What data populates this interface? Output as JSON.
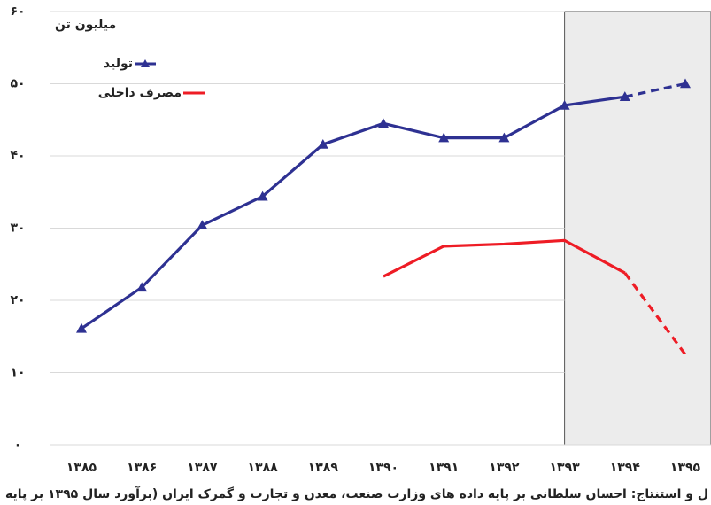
{
  "chart_data": {
    "type": "line",
    "y_label": "میلیون تن",
    "categories": [
      "۱۳۸۵",
      "۱۳۸۶",
      "۱۳۸۷",
      "۱۳۸۸",
      "۱۳۸۹",
      "۱۳۹۰",
      "۱۳۹۱",
      "۱۳۹۲",
      "۱۳۹۳",
      "۱۳۹۴",
      "۱۳۹۵"
    ],
    "series": [
      {
        "name": "تولید",
        "color": "#2e3192",
        "marker": "triangle",
        "values": [
          16.1,
          21.8,
          30.4,
          34.4,
          41.6,
          44.5,
          42.5,
          42.5,
          47,
          48.2,
          50
        ]
      },
      {
        "name": "مصرف داخلی",
        "color": "#ee1c25",
        "marker": "none",
        "values": [
          null,
          null,
          null,
          null,
          null,
          23.3,
          27.5,
          27.8,
          28.3,
          23.8,
          12.5
        ]
      }
    ],
    "dashed_from_index": 9,
    "shaded_from_index": 8,
    "ylim": [
      0,
      60
    ],
    "yticks": [
      {
        "value": 0,
        "label": "۰"
      },
      {
        "value": 10,
        "label": "۱۰"
      },
      {
        "value": 20,
        "label": "۲۰"
      },
      {
        "value": 30,
        "label": "۳۰"
      },
      {
        "value": 40,
        "label": "۴۰"
      },
      {
        "value": 50,
        "label": "۵۰"
      },
      {
        "value": 60,
        "label": "۶۰"
      }
    ],
    "grid": true,
    "legend": "top-left",
    "source": "ل و استنتاج: احسان سلطانی بر پایه داده های وزارت صنعت، معدن و تجارت و گمرک ایران (برآورد سال ۱۳۹۵ بر پایه شش ماهه اول)"
  }
}
